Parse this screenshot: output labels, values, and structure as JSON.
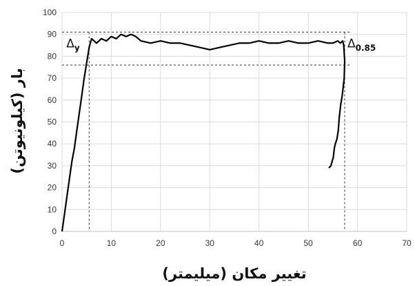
{
  "chart_data": {
    "type": "line",
    "title": "",
    "xlabel": "تغییر مکان (میلیمتر)",
    "ylabel": "بار (کیلونیوتن)",
    "xlim": [
      0,
      70
    ],
    "ylim": [
      0,
      100
    ],
    "xticks": [
      0,
      10,
      20,
      30,
      40,
      50,
      60,
      70
    ],
    "yticks": [
      0,
      10,
      20,
      30,
      40,
      50,
      60,
      70,
      80,
      90,
      100
    ],
    "grid": true,
    "legend": "none",
    "line_color": "#000000",
    "series": [
      {
        "x": [
          0,
          0.5,
          1,
          1.5,
          2,
          2.5,
          3,
          3.5,
          4,
          4.5,
          5,
          5.5,
          6,
          6.5,
          7,
          8,
          9,
          10,
          11,
          12,
          13,
          14,
          15,
          16,
          18,
          20,
          22,
          24,
          26,
          28,
          30,
          32,
          34,
          36,
          38,
          40,
          42,
          44,
          46,
          48,
          50,
          52,
          54,
          55,
          56,
          56.5,
          57,
          57.2,
          57.4,
          57.3,
          57.1,
          56.9,
          56.6,
          56.3,
          56.1,
          55.8,
          55.5,
          55.3,
          55.1,
          54.6,
          54.2
        ],
        "y": [
          0,
          8,
          16,
          24,
          32,
          38,
          46,
          54,
          62,
          70,
          77,
          84,
          88,
          87,
          86,
          88,
          87,
          89,
          88,
          90,
          89,
          90,
          89,
          87,
          86,
          87,
          86,
          86,
          85,
          84,
          83,
          84,
          85,
          86,
          86,
          87,
          86,
          86,
          87,
          86,
          86,
          87,
          86,
          86,
          87,
          86,
          87,
          85,
          78,
          70,
          66,
          62,
          58,
          52,
          46,
          42,
          40,
          38,
          34,
          30,
          29
        ]
      }
    ],
    "reference_lines": {
      "horizontal": [
        91,
        76
      ],
      "vertical": [
        5.5,
        57.4
      ]
    },
    "annotations": [
      {
        "base": "Δ",
        "sub": "y",
        "x": 5.5,
        "y": 91
      },
      {
        "base": "Δ",
        "sub": "0.85",
        "x": 57.4,
        "y": 85
      }
    ]
  }
}
